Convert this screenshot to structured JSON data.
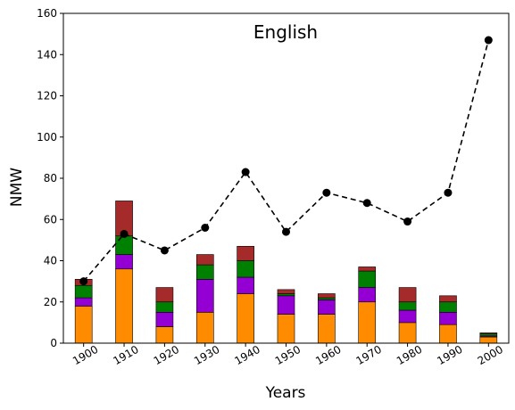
{
  "chart_data": {
    "type": "bar",
    "title": "English",
    "xlabel": "Years",
    "ylabel": "NMW",
    "ylim": [
      0,
      160
    ],
    "yticks": [
      "0",
      "20",
      "40",
      "60",
      "80",
      "100",
      "120",
      "140",
      "160"
    ],
    "categories": [
      "1900",
      "1910",
      "1920",
      "1930",
      "1940",
      "1950",
      "1960",
      "1970",
      "1980",
      "1990",
      "2000"
    ],
    "stacked": true,
    "grid": false,
    "series": [
      {
        "color": "#ff8c00",
        "values": [
          18,
          36,
          8,
          15,
          24,
          14,
          14,
          20,
          10,
          9,
          3
        ]
      },
      {
        "color": "#9400d3",
        "values": [
          4,
          7,
          7,
          16,
          8,
          9,
          7,
          7,
          6,
          6,
          0.5
        ]
      },
      {
        "color": "#008000",
        "values": [
          6,
          9,
          5,
          7,
          8,
          1,
          1,
          8,
          4,
          5,
          1
        ]
      },
      {
        "color": "#a52a2a",
        "values": [
          3,
          17,
          7,
          5,
          7,
          2,
          2,
          2,
          7,
          3,
          0.5
        ]
      }
    ],
    "line": {
      "style": "dashed",
      "color": "#000000",
      "marker": "circle",
      "values": [
        30,
        53,
        45,
        56,
        83,
        54,
        73,
        68,
        59,
        73,
        147
      ]
    }
  }
}
